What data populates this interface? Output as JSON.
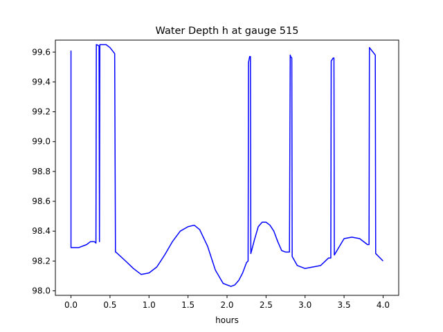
{
  "chart_data": {
    "type": "line",
    "title": "Water Depth h at gauge 515",
    "xlabel": "hours",
    "ylabel": "",
    "xlim": [
      -0.2,
      4.2
    ],
    "ylim": [
      97.97,
      99.68
    ],
    "xticks": [
      0.0,
      0.5,
      1.0,
      1.5,
      2.0,
      2.5,
      3.0,
      3.5,
      4.0
    ],
    "xtick_labels": [
      "0.0",
      "0.5",
      "1.0",
      "1.5",
      "2.0",
      "2.5",
      "3.0",
      "3.5",
      "4.0"
    ],
    "yticks": [
      98.0,
      98.2,
      98.4,
      98.6,
      98.8,
      99.0,
      99.2,
      99.4,
      99.6
    ],
    "ytick_labels": [
      "98.0",
      "98.2",
      "98.4",
      "98.6",
      "98.8",
      "99.0",
      "99.2",
      "99.4",
      "99.6"
    ],
    "grid": false,
    "legend": "none",
    "series": [
      {
        "color": "#0000ff",
        "x": [
          0.0,
          0.0,
          0.1,
          0.2,
          0.25,
          0.3,
          0.32,
          0.325,
          0.33,
          0.36,
          0.365,
          0.37,
          0.38,
          0.45,
          0.5,
          0.56,
          0.57,
          0.575,
          0.7,
          0.8,
          0.9,
          1.0,
          1.1,
          1.2,
          1.3,
          1.4,
          1.5,
          1.58,
          1.65,
          1.75,
          1.85,
          1.95,
          2.05,
          2.1,
          2.15,
          2.2,
          2.25,
          2.27,
          2.275,
          2.29,
          2.3,
          2.305,
          2.35,
          2.4,
          2.45,
          2.5,
          2.55,
          2.6,
          2.65,
          2.7,
          2.75,
          2.8,
          2.81,
          2.815,
          2.83,
          2.835,
          2.9,
          3.0,
          3.1,
          3.2,
          3.3,
          3.33,
          3.335,
          3.36,
          3.37,
          3.375,
          3.42,
          3.5,
          3.6,
          3.7,
          3.8,
          3.82,
          3.825,
          3.9,
          3.905,
          4.0
        ],
        "y": [
          99.61,
          98.29,
          98.29,
          98.31,
          98.33,
          98.33,
          98.32,
          99.65,
          99.65,
          99.64,
          98.33,
          99.65,
          99.65,
          99.65,
          99.63,
          99.59,
          98.26,
          98.26,
          98.2,
          98.15,
          98.11,
          98.12,
          98.16,
          98.24,
          98.33,
          98.4,
          98.43,
          98.44,
          98.41,
          98.3,
          98.14,
          98.05,
          98.03,
          98.04,
          98.07,
          98.12,
          98.19,
          98.2,
          99.53,
          99.57,
          99.57,
          98.25,
          98.34,
          98.43,
          98.46,
          98.46,
          98.44,
          98.4,
          98.33,
          98.27,
          98.26,
          98.26,
          99.58,
          99.57,
          99.56,
          98.23,
          98.17,
          98.15,
          98.16,
          98.17,
          98.22,
          98.22,
          99.54,
          99.56,
          99.56,
          98.24,
          98.28,
          98.35,
          98.36,
          98.35,
          98.31,
          98.31,
          99.63,
          99.58,
          98.25,
          98.2
        ]
      }
    ]
  }
}
